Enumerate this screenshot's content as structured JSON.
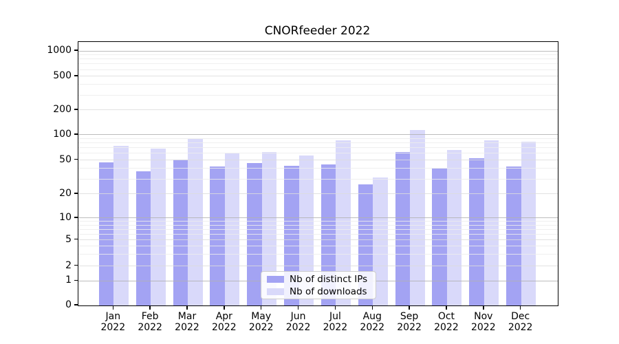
{
  "chart_data": {
    "type": "bar",
    "title": "CNORfeeder 2022",
    "x_axis": {
      "categories": [
        "Jan",
        "Feb",
        "Mar",
        "Apr",
        "May",
        "Jun",
        "Jul",
        "Aug",
        "Sep",
        "Oct",
        "Nov",
        "Dec"
      ],
      "year_label": "2022"
    },
    "y_axis": {
      "scale": "symlog",
      "ticks": [
        0,
        1,
        2,
        5,
        10,
        20,
        50,
        100,
        200,
        500,
        1000
      ],
      "range_top": 1280
    },
    "series": [
      {
        "name": "Nb of distinct IPs",
        "color": "#a3a3f3",
        "values": [
          47,
          37,
          51,
          42,
          46,
          43,
          44,
          26,
          62,
          40,
          53,
          42
        ]
      },
      {
        "name": "Nb of downloads",
        "color": "#d9d9fa",
        "values": [
          74,
          68,
          89,
          60,
          62,
          57,
          86,
          31,
          113,
          66,
          86,
          82
        ]
      }
    ],
    "grid": {
      "major_color": "#b0b0b0",
      "mid_color": "#dcdcdc",
      "minor_color": "#ececec"
    },
    "legend": {
      "position": "lower center inside",
      "entries": [
        "Nb of distinct IPs",
        "Nb of downloads"
      ]
    }
  }
}
